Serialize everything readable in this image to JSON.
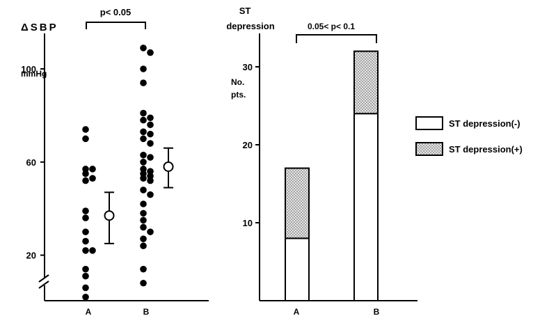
{
  "chart_data": [
    {
      "type": "scatter",
      "ylabel": "ΔSBP",
      "yunit": "mmHg",
      "ylim": [
        0,
        115
      ],
      "yticks": [
        20,
        60,
        100
      ],
      "ytick_labels": [
        "20",
        "60",
        "100"
      ],
      "axis_break": true,
      "categories": [
        "A",
        "B"
      ],
      "groups": [
        {
          "category": "A",
          "values": [
            74,
            70,
            57,
            57,
            55,
            53,
            52,
            39,
            36,
            30,
            26,
            22,
            22,
            14,
            11,
            6,
            2
          ],
          "mean": 37,
          "err_low": 25,
          "err_high": 47
        },
        {
          "category": "B",
          "values": [
            109,
            107,
            100,
            94,
            81,
            79,
            78,
            76,
            73,
            72,
            70,
            68,
            63,
            62,
            60,
            57,
            56,
            55,
            54,
            53,
            52,
            48,
            46,
            42,
            38,
            35,
            32,
            30,
            27,
            24,
            14,
            8
          ],
          "mean": 58,
          "err_low": 49,
          "err_high": 66
        }
      ],
      "significance": "p< 0.05"
    },
    {
      "type": "bar",
      "stacked": true,
      "title": "ST depression",
      "ylabel": "No. pts.",
      "ylim": [
        0,
        35
      ],
      "yticks": [
        10,
        20,
        30
      ],
      "ytick_labels": [
        "10",
        "20",
        "30"
      ],
      "categories": [
        "A",
        "B"
      ],
      "series": [
        {
          "name": "ST depression(-)",
          "values": [
            8,
            24
          ],
          "pattern": "white"
        },
        {
          "name": "ST depression(+)",
          "values": [
            9,
            8
          ],
          "pattern": "stipple"
        }
      ],
      "significance": "0.05< p< 0.1",
      "legend_position": "right"
    }
  ]
}
